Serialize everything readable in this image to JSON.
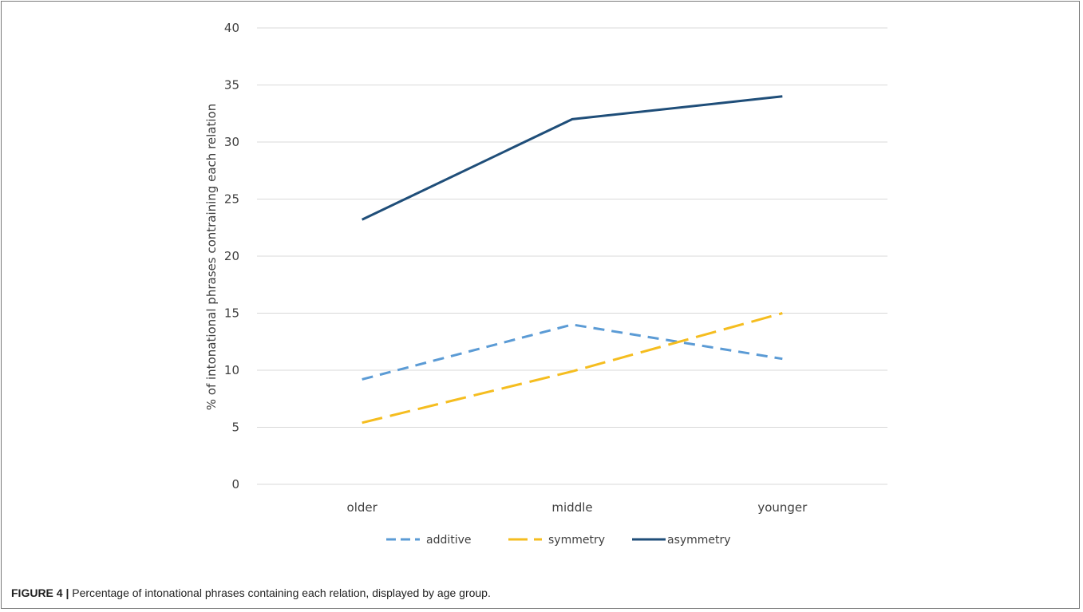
{
  "caption": {
    "label": "FIGURE 4 |",
    "text": "Percentage of intonational phrases containing each relation, displayed by age group."
  },
  "chart_data": {
    "type": "line",
    "categories": [
      "older",
      "middle",
      "younger"
    ],
    "ylabel": "% of intonational phrases contraining each relation",
    "xlabel": "",
    "ylim": [
      0,
      40
    ],
    "yticks": [
      0,
      5,
      10,
      15,
      20,
      25,
      30,
      35,
      40
    ],
    "grid": true,
    "legend_position": "bottom",
    "series": [
      {
        "name": "additive",
        "values": [
          9.2,
          14.0,
          11.0
        ],
        "color": "#5b9bd5",
        "dash": "short"
      },
      {
        "name": "symmetry",
        "values": [
          5.4,
          9.9,
          15.0
        ],
        "color": "#f5bd1f",
        "dash": "long"
      },
      {
        "name": "asymmetry",
        "values": [
          23.2,
          32.0,
          34.0
        ],
        "color": "#1f4e79",
        "dash": "solid"
      }
    ]
  }
}
